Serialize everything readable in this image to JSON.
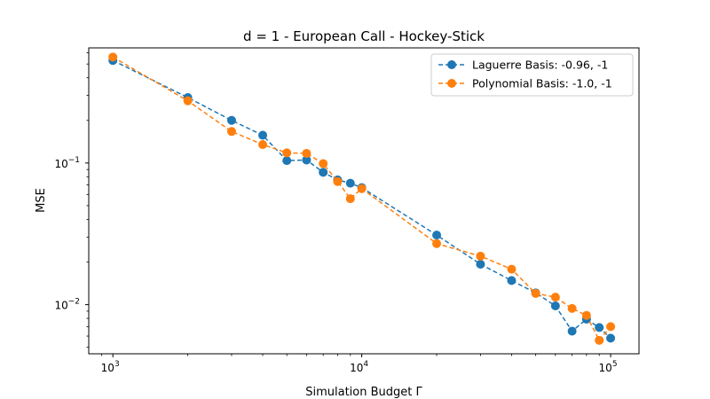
{
  "chart_data": {
    "type": "line",
    "title": "d = 1 - European Call - Hockey-Stick",
    "xlabel": "Simulation Budget Γ",
    "ylabel": "MSE",
    "xscale": "log",
    "yscale": "log",
    "xlim": [
      800,
      130000
    ],
    "ylim": [
      0.0045,
      0.65
    ],
    "grid": false,
    "legend_position": "top-right",
    "x_major_ticks": [
      {
        "value": 1000,
        "base": "10",
        "exp": "3"
      },
      {
        "value": 10000,
        "base": "10",
        "exp": "4"
      },
      {
        "value": 100000,
        "base": "10",
        "exp": "5"
      }
    ],
    "y_major_ticks": [
      {
        "value": 0.1,
        "base": "10",
        "exp": "−1"
      },
      {
        "value": 0.01,
        "base": "10",
        "exp": "−2"
      }
    ],
    "x": [
      1000,
      2000,
      3000,
      4000,
      5000,
      6000,
      7000,
      8000,
      9000,
      10000,
      20000,
      30000,
      40000,
      50000,
      60000,
      70000,
      80000,
      90000,
      100000
    ],
    "series": [
      {
        "name": "Laguerre Basis: -0.96, -1",
        "color": "#1f77b4",
        "linestyle": "dashed",
        "marker": "circle",
        "values": [
          0.53,
          0.29,
          0.2,
          0.157,
          0.104,
          0.105,
          0.086,
          0.076,
          0.072,
          0.067,
          0.031,
          0.0193,
          0.0148,
          0.0121,
          0.0098,
          0.0065,
          0.0079,
          0.0069,
          0.0058
        ]
      },
      {
        "name": "Polynomial Basis: -1.0, -1",
        "color": "#ff7f0e",
        "linestyle": "dashed",
        "marker": "circle",
        "values": [
          0.56,
          0.275,
          0.167,
          0.135,
          0.118,
          0.117,
          0.099,
          0.074,
          0.056,
          0.066,
          0.027,
          0.022,
          0.0178,
          0.012,
          0.0113,
          0.0094,
          0.0084,
          0.0056,
          0.007
        ]
      }
    ]
  }
}
